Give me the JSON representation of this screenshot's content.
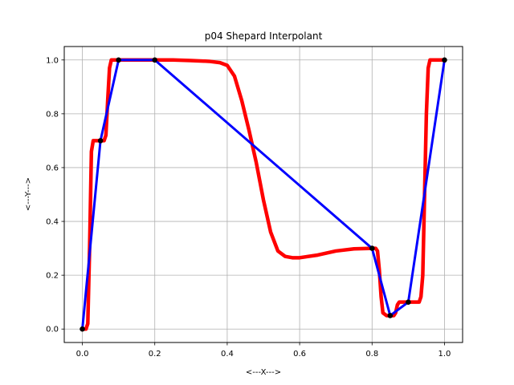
{
  "chart_data": {
    "type": "line",
    "title": "p04 Shepard Interpolant",
    "xlabel": "<---X--->",
    "ylabel": "<---Y--->",
    "xlim": [
      -0.05,
      1.05
    ],
    "ylim": [
      -0.05,
      1.05
    ],
    "x_ticks": [
      "0.0",
      "0.2",
      "0.4",
      "0.6",
      "0.8",
      "1.0"
    ],
    "y_ticks": [
      "0.0",
      "0.2",
      "0.4",
      "0.6",
      "0.8",
      "1.0"
    ],
    "grid": true,
    "data_points": {
      "x": [
        0.0,
        0.05,
        0.1,
        0.2,
        0.8,
        0.85,
        0.9,
        1.0
      ],
      "y": [
        0.0,
        0.7,
        1.0,
        1.0,
        0.3,
        0.05,
        0.1,
        1.0
      ],
      "color": "#000000"
    },
    "series": [
      {
        "style": "piecewise-linear",
        "color": "#0000ff",
        "x": [
          0.0,
          0.05,
          0.1,
          0.2,
          0.8,
          0.85,
          0.9,
          1.0
        ],
        "y": [
          0.0,
          0.7,
          1.0,
          1.0,
          0.3,
          0.05,
          0.1,
          1.0
        ]
      },
      {
        "style": "shepard-interpolant",
        "color": "#ff0000",
        "x": [
          0.0,
          0.01,
          0.015,
          0.02,
          0.025,
          0.03,
          0.04,
          0.05,
          0.06,
          0.065,
          0.07,
          0.075,
          0.08,
          0.09,
          0.1,
          0.12,
          0.15,
          0.2,
          0.25,
          0.3,
          0.35,
          0.38,
          0.4,
          0.42,
          0.44,
          0.46,
          0.48,
          0.5,
          0.52,
          0.54,
          0.56,
          0.58,
          0.6,
          0.65,
          0.7,
          0.75,
          0.8,
          0.81,
          0.815,
          0.82,
          0.825,
          0.83,
          0.84,
          0.85,
          0.86,
          0.865,
          0.87,
          0.875,
          0.88,
          0.89,
          0.9,
          0.91,
          0.92,
          0.93,
          0.935,
          0.94,
          0.945,
          0.95,
          0.955,
          0.96,
          0.97,
          0.98,
          0.99,
          1.0
        ],
        "y": [
          0.0,
          0.0,
          0.02,
          0.3,
          0.66,
          0.7,
          0.7,
          0.7,
          0.7,
          0.72,
          0.85,
          0.97,
          1.0,
          1.0,
          1.0,
          1.0,
          1.0,
          1.0,
          1.0,
          0.998,
          0.995,
          0.99,
          0.98,
          0.94,
          0.85,
          0.74,
          0.62,
          0.48,
          0.36,
          0.29,
          0.27,
          0.265,
          0.265,
          0.275,
          0.29,
          0.298,
          0.3,
          0.3,
          0.29,
          0.22,
          0.12,
          0.06,
          0.05,
          0.05,
          0.05,
          0.06,
          0.09,
          0.1,
          0.1,
          0.1,
          0.1,
          0.1,
          0.1,
          0.1,
          0.12,
          0.2,
          0.5,
          0.8,
          0.97,
          1.0,
          1.0,
          1.0,
          1.0,
          1.0
        ]
      }
    ]
  }
}
